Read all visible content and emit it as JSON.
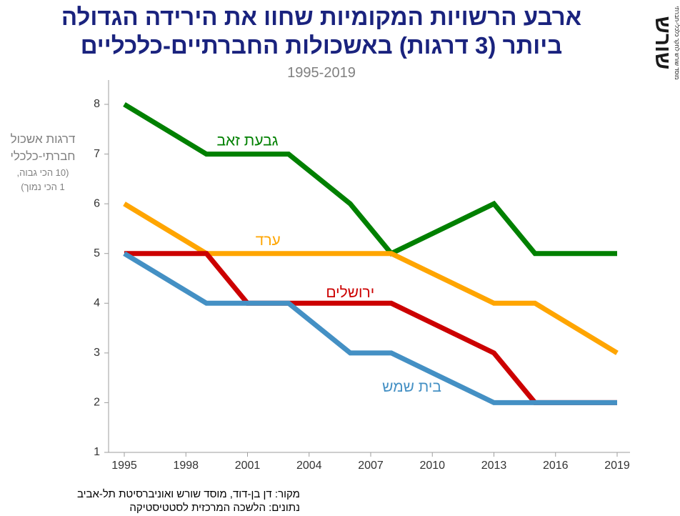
{
  "title_lines": [
    "ארבע הרשויות המקומיות שחוו את הירידה הגדולה",
    "ביותר (3 דרגות) באשכולות החברתיים-כלכליים"
  ],
  "subtitle": "1995-2019",
  "logo": {
    "text": "שורש",
    "tagline": "מוסד שורש לחקר כלכלי-חברתי"
  },
  "footer": {
    "source": "מקור:  דן בן-דוד, מוסד שורש ואוניברסיטת תל-אביב",
    "data": "נתונים: הלשכה המרכזית לסטטיסטיקה"
  },
  "colors": {
    "title": "#1a237e",
    "axis_text": "#808080",
    "givat_zeev": "#008000",
    "arad": "#ffa500",
    "jerusalem": "#cc0000",
    "beit_shemesh": "#4490c4"
  },
  "chart_data": {
    "type": "line",
    "ylabel": "דרגות אשכול חברתי-כלכלי",
    "ylabel_lines": [
      "דרגות אשכול",
      "חברתי-כלכלי"
    ],
    "ylabel_note": [
      "(10 הכי גבוה,",
      "1 הכי נמוך)"
    ],
    "xlim": [
      1995,
      2019
    ],
    "ylim": [
      1,
      8
    ],
    "x_ticks": [
      1995,
      1998,
      2001,
      2004,
      2007,
      2010,
      2013,
      2016,
      2019
    ],
    "y_ticks": [
      1,
      2,
      3,
      4,
      5,
      6,
      7,
      8
    ],
    "grid": false,
    "legend": "inline labels",
    "series": [
      {
        "key": "givat_zeev",
        "name": "גבעת זאב",
        "color": "#008000",
        "x": [
          1995,
          1999,
          2003,
          2006,
          2008,
          2013,
          2015,
          2019
        ],
        "y": [
          8,
          7,
          7,
          6,
          5,
          6,
          5,
          5
        ],
        "label_at": [
          2001,
          7.25
        ]
      },
      {
        "key": "arad",
        "name": "ערד",
        "color": "#ffa500",
        "x": [
          1995,
          1999,
          2008,
          2013,
          2015,
          2019
        ],
        "y": [
          6,
          5,
          5,
          4,
          4,
          3
        ],
        "label_at": [
          2002,
          5.25
        ]
      },
      {
        "key": "jerusalem",
        "name": "ירושלים",
        "color": "#cc0000",
        "x": [
          1995,
          1999,
          2001,
          2008,
          2013,
          2015,
          2019
        ],
        "y": [
          5,
          5,
          4,
          4,
          3,
          2,
          2
        ],
        "label_at": [
          2006,
          4.2
        ]
      },
      {
        "key": "beit_shemesh",
        "name": "בית שמש",
        "color": "#4490c4",
        "x": [
          1995,
          1999,
          2003,
          2006,
          2008,
          2013,
          2019
        ],
        "y": [
          5,
          4,
          4,
          3,
          3,
          2,
          2
        ],
        "label_at": [
          2009,
          2.3
        ]
      }
    ]
  }
}
